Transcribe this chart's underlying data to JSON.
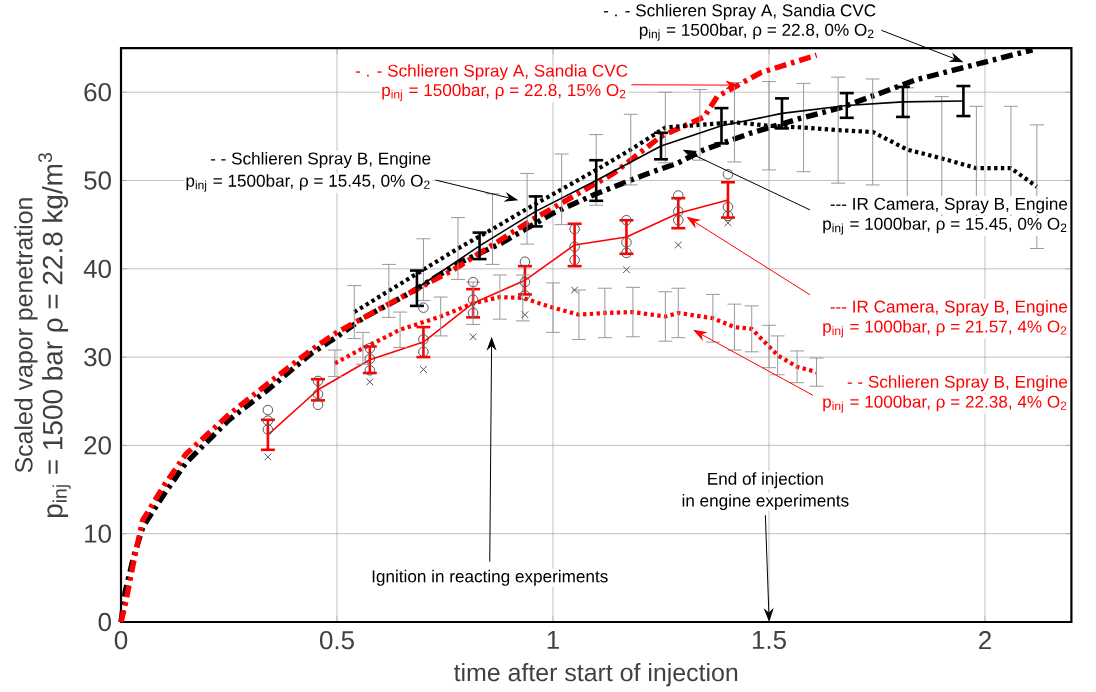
{
  "chart_data": {
    "type": "line",
    "xlabel": "time after start of injection",
    "ylabel": "Scaled vapor penetration",
    "xlim": [
      0,
      2.2
    ],
    "ylim": [
      0,
      65
    ],
    "xticks": [
      0,
      0.5,
      1,
      1.5,
      2
    ],
    "yticks": [
      0,
      10,
      20,
      30,
      40,
      50,
      60
    ],
    "grid": true,
    "series": [
      {
        "color": "#000000",
        "line_style": "dashdot",
        "x": [
          0,
          0.01,
          0.03,
          0.051,
          0.1,
          0.15,
          0.25,
          0.34,
          0.44,
          0.5,
          0.56,
          0.67,
          0.78,
          0.88,
          1.0,
          1.1,
          1.22,
          1.29,
          1.35,
          1.46,
          1.57,
          1.67,
          1.84,
          2.11
        ],
        "values": [
          0,
          3.5,
          7.5,
          10.8,
          14.5,
          18,
          22.9,
          26.3,
          30.4,
          32.3,
          34.4,
          37.3,
          40.6,
          42.9,
          46.3,
          48.5,
          50.8,
          52,
          53.5,
          55.4,
          57,
          58.3,
          61.4,
          64.8
        ]
      },
      {
        "color": "#ff0000",
        "line_style": "dashdot",
        "x": [
          0,
          0.01,
          0.03,
          0.05,
          0.1,
          0.15,
          0.25,
          0.34,
          0.44,
          0.5,
          0.6,
          0.77,
          0.95,
          1.14,
          1.25,
          1.35,
          1.38,
          1.48,
          1.61
        ],
        "values": [
          0,
          2,
          7,
          11.5,
          15.5,
          19,
          23.5,
          27,
          30.8,
          32.8,
          35.5,
          39.9,
          45.5,
          50.8,
          55,
          57.2,
          59.5,
          62.2,
          64.2
        ]
      },
      {
        "color": "#000000",
        "line_style": "dotted",
        "x": [
          0.54,
          0.62,
          0.7,
          0.78,
          0.86,
          0.94,
          1.02,
          1.1,
          1.18,
          1.26,
          1.34,
          1.42,
          1.5,
          1.58,
          1.66,
          1.74,
          1.82,
          1.9,
          1.98,
          2.06,
          2.12
        ],
        "values": [
          35.1,
          37.5,
          39.9,
          42.3,
          44.5,
          46.8,
          49,
          51.2,
          53.5,
          56,
          56.3,
          56.6,
          56.2,
          56,
          55.7,
          55.5,
          53.5,
          52.5,
          51.4,
          51.4,
          49.3
        ],
        "errors": [
          3,
          3,
          3.5,
          3.5,
          4,
          4,
          4,
          4,
          4,
          4,
          4,
          4.5,
          5,
          5,
          6,
          6,
          7,
          7,
          7,
          7,
          7
        ]
      },
      {
        "color": "#000000",
        "line_style": "solid",
        "x": [
          0.685,
          0.83,
          0.96,
          1.1,
          1.25,
          1.39,
          1.53,
          1.68,
          1.81,
          1.95
        ],
        "values": [
          37.8,
          42.6,
          46.5,
          50,
          53.9,
          56.2,
          57.6,
          58.5,
          58.9,
          59.0
        ],
        "errors": [
          2,
          1.5,
          1.7,
          2.3,
          1.5,
          2,
          1.7,
          1.4,
          1.7,
          1.7
        ]
      },
      {
        "color": "#ff0000",
        "line_style": "solid",
        "x": [
          0.34,
          0.456,
          0.576,
          0.7,
          0.815,
          0.935,
          1.05,
          1.17,
          1.29,
          1.405
        ],
        "values": [
          21.2,
          26.3,
          29.7,
          31.7,
          36.1,
          38.7,
          42.7,
          43.6,
          46.3,
          47.8
        ],
        "errors": [
          1.7,
          1.2,
          1.5,
          1.7,
          1.6,
          1.6,
          2.4,
          1.9,
          1.7,
          2
        ]
      },
      {
        "color": "#ff0000",
        "line_style": "dotted",
        "x": [
          0.495,
          0.56,
          0.646,
          0.74,
          0.815,
          0.877,
          0.93,
          1.0,
          1.06,
          1.12,
          1.185,
          1.26,
          1.29,
          1.37,
          1.42,
          1.46,
          1.5,
          1.52,
          1.565,
          1.61
        ],
        "values": [
          29.3,
          31,
          33.1,
          34.6,
          36.1,
          36.8,
          36.7,
          35.6,
          34.8,
          35,
          35.1,
          34.6,
          35,
          34.4,
          33.4,
          33.2,
          31.2,
          30.2,
          28.9,
          28.3
        ],
        "errors": [
          1.5,
          1.8,
          2,
          2.2,
          2.4,
          2.5,
          2.6,
          2.8,
          2.8,
          2.8,
          2.8,
          2.8,
          2.8,
          2.7,
          2.6,
          2.6,
          2.4,
          2.2,
          1.8,
          1.6
        ]
      },
      {
        "type": "scatter",
        "marker": "circle",
        "color": "#555555",
        "x": [
          0.34,
          0.34,
          0.34,
          0.456,
          0.456,
          0.456,
          0.576,
          0.576,
          0.576,
          0.7,
          0.7,
          0.7,
          0.815,
          0.815,
          0.815,
          0.935,
          0.935,
          0.935,
          1.05,
          1.05,
          1.05,
          1.17,
          1.17,
          1.17,
          1.29,
          1.29,
          1.29,
          1.405,
          1.405,
          1.405
        ],
        "values": [
          24.0,
          22.8,
          21.8,
          27.3,
          25.8,
          24.6,
          31.0,
          29.8,
          28.5,
          35.6,
          32.0,
          30.6,
          38.5,
          36.5,
          35.0,
          40.8,
          38.5,
          37.0,
          44.5,
          42.5,
          41.0,
          45.5,
          43.0,
          41.8,
          48.3,
          46.5,
          45.5,
          50.7,
          47.0,
          46.0
        ]
      },
      {
        "type": "scatter",
        "marker": "cross",
        "color": "#555555",
        "x": [
          0.34,
          0.576,
          0.7,
          0.815,
          0.935,
          1.05,
          1.17,
          1.29,
          1.405
        ],
        "values": [
          18.7,
          27.2,
          28.6,
          32.3,
          34.8,
          37.6,
          39.9,
          42.7,
          45.2
        ]
      }
    ],
    "annotations": [
      {
        "text": "- . - Schlieren Spray A, Sandia CVC",
        "x": 1.95,
        "y": 63.4
      },
      "p$_{inj}$ = 1500bar, ρ = 22.8, 0% O$_{2}$",
      {
        "text": "- . - Schlieren Spray A, Sandia CVC",
        "x": 1.43,
        "y": 60.8
      },
      "p$_{inj}$ = 1500bar, ρ = 22.8, 15% O$_{2}$",
      "- - Schlieren Spray B, Engine",
      "p$_{inj}$ = 1500bar, ρ = 15.45, 0% O$_{2}$",
      "--- IR Camera, Spray B, Engine",
      "p$_{inj}$ = 1000bar, ρ = 15.45, 0% O$_{2}$",
      "--- IR Camera, Spray B, Engine",
      "p$_{inj}$ = 1000bar, ρ = 21.57, 4% O$_{2}$",
      "- - Schlieren Spray B, Engine",
      "p$_{inj}$ = 1000bar, ρ = 22.38, 4% O$_{2}$",
      "Ignition in reacting experiments",
      "End of injection",
      "in engine experiments",
      "p$_{inj}$ = 1500 bar ρ = 22.8 kg/m$^{3}$"
    ]
  }
}
